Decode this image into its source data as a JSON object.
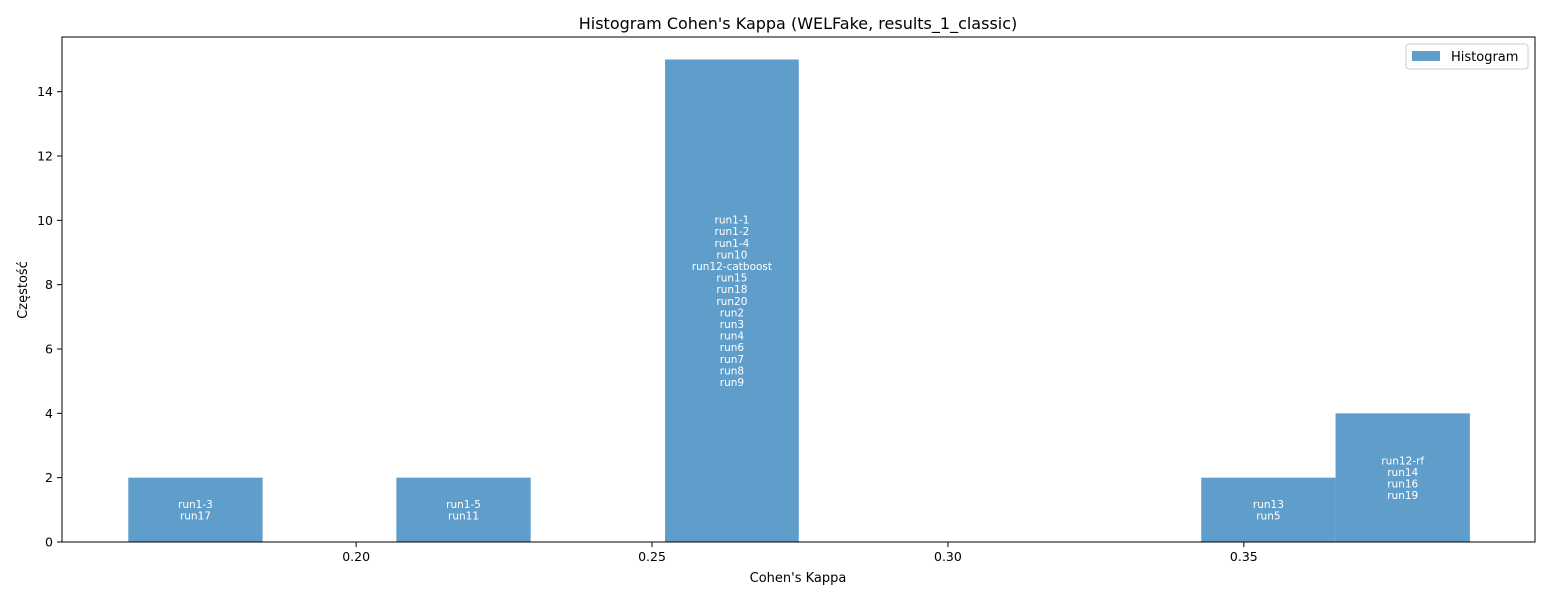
{
  "chart_data": {
    "type": "bar",
    "title": "Histogram Cohen's Kappa (WELFake, results_1_classic)",
    "xlabel": "Cohen's Kappa",
    "ylabel": "Częstość",
    "xlim": [
      0.1503,
      0.3992
    ],
    "ylim": [
      0,
      15.7
    ],
    "xticks": [
      0.2,
      0.25,
      0.3,
      0.35
    ],
    "xtick_labels": [
      "0.20",
      "0.25",
      "0.30",
      "0.35"
    ],
    "yticks": [
      0,
      2,
      4,
      6,
      8,
      10,
      12,
      14
    ],
    "ytick_labels": [
      "0",
      "2",
      "4",
      "6",
      "8",
      "10",
      "12",
      "14"
    ],
    "grid": false,
    "legend": {
      "placement": "top-right",
      "entries": [
        "Histogram"
      ]
    },
    "bar_color": "#5f9ecb",
    "bins": [
      {
        "x_start": 0.1615,
        "x_end": 0.1842,
        "count": 2,
        "labels": [
          "run1-3",
          "run17"
        ]
      },
      {
        "x_start": 0.1842,
        "x_end": 0.2068,
        "count": 0,
        "labels": []
      },
      {
        "x_start": 0.2068,
        "x_end": 0.2295,
        "count": 2,
        "labels": [
          "run1-5",
          "run11"
        ]
      },
      {
        "x_start": 0.2295,
        "x_end": 0.2522,
        "count": 0,
        "labels": []
      },
      {
        "x_start": 0.2522,
        "x_end": 0.2748,
        "count": 15,
        "labels": [
          "run1-1",
          "run1-2",
          "run1-4",
          "run10",
          "run12-catboost",
          "run15",
          "run18",
          "run20",
          "run2",
          "run3",
          "run4",
          "run6",
          "run7",
          "run8",
          "run9"
        ]
      },
      {
        "x_start": 0.2748,
        "x_end": 0.2975,
        "count": 0,
        "labels": []
      },
      {
        "x_start": 0.2975,
        "x_end": 0.3202,
        "count": 0,
        "labels": []
      },
      {
        "x_start": 0.3202,
        "x_end": 0.3428,
        "count": 0,
        "labels": []
      },
      {
        "x_start": 0.3428,
        "x_end": 0.3655,
        "count": 2,
        "labels": [
          "run13",
          "run5"
        ]
      },
      {
        "x_start": 0.3655,
        "x_end": 0.3882,
        "count": 4,
        "labels": [
          "run12-rf",
          "run14",
          "run16",
          "run19"
        ]
      }
    ]
  }
}
